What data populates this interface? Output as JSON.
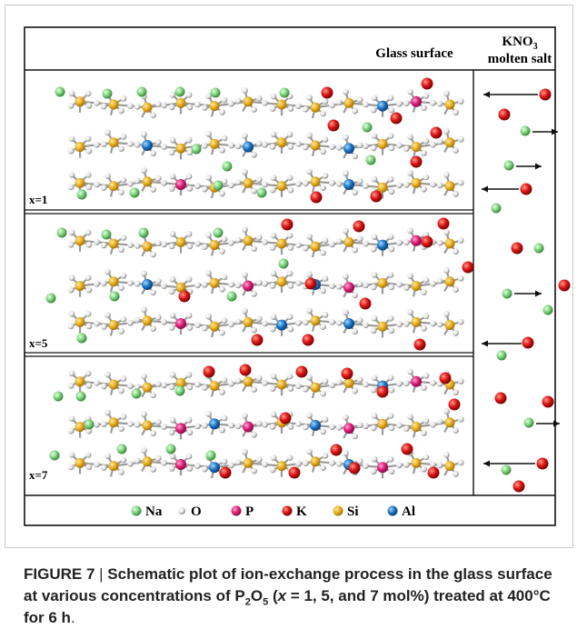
{
  "header": {
    "glass_surface": "Glass surface",
    "salt_name": "KNO",
    "salt_sub": "3",
    "salt_desc": "molten salt"
  },
  "panels": [
    {
      "label": "x=1"
    },
    {
      "label": "x=5"
    },
    {
      "label": "x=7"
    }
  ],
  "legend": [
    {
      "symbol": "Na",
      "color": "#7ed37e"
    },
    {
      "symbol": "O",
      "color": "#e4e4e4"
    },
    {
      "symbol": "P",
      "color": "#e0207a"
    },
    {
      "symbol": "K",
      "color": "#dd1414"
    },
    {
      "symbol": "Si",
      "color": "#e8b020"
    },
    {
      "symbol": "Al",
      "color": "#1e78c8"
    }
  ],
  "caption": {
    "prefix": "FIGURE 7",
    "separator": " | ",
    "part1": "Schematic plot of ion-exchange process in the glass surface at various concentrations of P",
    "sub": "2",
    "part2": "O",
    "sub2": "5",
    "part3": " (",
    "var": "x",
    "part4": " = 1, 5, and 7 mol%) treated at 400°C for 6 h",
    "end": "."
  }
}
